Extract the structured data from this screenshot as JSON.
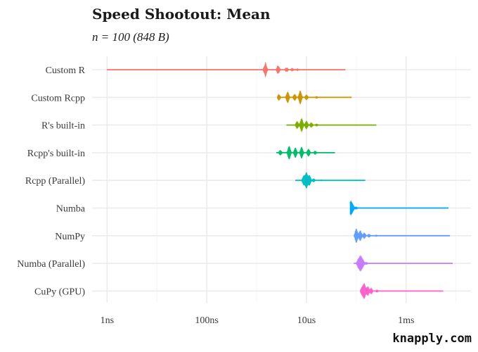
{
  "chart_data": {
    "type": "violin",
    "title": "Speed Shootout: Mean",
    "subtitle": "n = 100 (848 B)",
    "caption": "knapply.com",
    "x_scale": "log10",
    "x_unit": "seconds",
    "x_ticks": [
      {
        "value": 1e-09,
        "label": "1ns"
      },
      {
        "value": 1e-07,
        "label": "100ns"
      },
      {
        "value": 1e-05,
        "label": "10us"
      },
      {
        "value": 0.001,
        "label": "1ms"
      }
    ],
    "xlim": [
      5e-10,
      0.02
    ],
    "grid": true,
    "legend": "none",
    "series": [
      {
        "name": "Custom R",
        "color": "#F8766D",
        "min": 1e-09,
        "max": 6e-05,
        "peaks": [
          {
            "at": 1.5e-06,
            "h": 0.9
          },
          {
            "at": 2.7e-06,
            "h": 0.55
          },
          {
            "at": 4e-06,
            "h": 0.3
          },
          {
            "at": 5.2e-06,
            "h": 0.2
          },
          {
            "at": 6.5e-06,
            "h": 0.15
          }
        ]
      },
      {
        "name": "Custom Rcpp",
        "color": "#CD9600",
        "min": 2.6e-06,
        "max": 8e-05,
        "peaks": [
          {
            "at": 2.8e-06,
            "h": 0.35
          },
          {
            "at": 4.2e-06,
            "h": 0.7
          },
          {
            "at": 5.8e-06,
            "h": 0.4
          },
          {
            "at": 7.5e-06,
            "h": 0.85
          },
          {
            "at": 1e-05,
            "h": 0.3
          },
          {
            "at": 1.6e-05,
            "h": 0.12
          }
        ]
      },
      {
        "name": "R's built-in",
        "color": "#7CAE00",
        "min": 4e-06,
        "max": 0.00025,
        "peaks": [
          {
            "at": 6.5e-06,
            "h": 0.45
          },
          {
            "at": 8e-06,
            "h": 0.85
          },
          {
            "at": 1e-05,
            "h": 0.5
          },
          {
            "at": 1.25e-05,
            "h": 0.3
          },
          {
            "at": 1.6e-05,
            "h": 0.15
          }
        ]
      },
      {
        "name": "Rcpp's built-in",
        "color": "#00BE67",
        "min": 2.5e-06,
        "max": 3.7e-05,
        "peaks": [
          {
            "at": 3e-06,
            "h": 0.3
          },
          {
            "at": 4.5e-06,
            "h": 0.85
          },
          {
            "at": 6e-06,
            "h": 0.6
          },
          {
            "at": 8e-06,
            "h": 0.7
          },
          {
            "at": 1.1e-05,
            "h": 0.45
          },
          {
            "at": 1.5e-05,
            "h": 0.2
          }
        ]
      },
      {
        "name": "Rcpp (Parallel)",
        "color": "#00BFC4",
        "min": 6e-06,
        "max": 0.00015,
        "peaks": [
          {
            "at": 8.8e-06,
            "h": 0.55
          },
          {
            "at": 1e-05,
            "h": 0.95
          },
          {
            "at": 1.15e-05,
            "h": 0.6
          },
          {
            "at": 1.4e-05,
            "h": 0.2
          },
          {
            "at": 2e-05,
            "h": 0.08
          }
        ]
      },
      {
        "name": "Numba",
        "color": "#00A9FF",
        "min": 7.5e-05,
        "max": 0.007,
        "peaks": [
          {
            "at": 7.7e-05,
            "h": 0.85
          },
          {
            "at": 8.5e-05,
            "h": 0.4
          },
          {
            "at": 0.0001,
            "h": 0.15
          }
        ]
      },
      {
        "name": "NumPy",
        "color": "#619CFF",
        "min": 9e-05,
        "max": 0.0075,
        "peaks": [
          {
            "at": 0.0001,
            "h": 0.9
          },
          {
            "at": 0.00012,
            "h": 0.65
          },
          {
            "at": 0.000145,
            "h": 0.35
          },
          {
            "at": 0.00018,
            "h": 0.2
          },
          {
            "at": 0.00025,
            "h": 0.1
          }
        ]
      },
      {
        "name": "Numba (Parallel)",
        "color": "#C77CFF",
        "min": 9e-05,
        "max": 0.0085,
        "peaks": [
          {
            "at": 0.00011,
            "h": 0.55
          },
          {
            "at": 0.000122,
            "h": 0.85
          },
          {
            "at": 0.000135,
            "h": 0.45
          },
          {
            "at": 0.00016,
            "h": 0.15
          }
        ]
      },
      {
        "name": "CuPy (GPU)",
        "color": "#FF61CC",
        "min": 0.00012,
        "max": 0.0055,
        "peaks": [
          {
            "at": 0.00013,
            "h": 0.45
          },
          {
            "at": 0.000145,
            "h": 0.9
          },
          {
            "at": 0.00017,
            "h": 0.55
          },
          {
            "at": 0.0002,
            "h": 0.35
          },
          {
            "at": 0.00026,
            "h": 0.15
          }
        ]
      }
    ]
  }
}
